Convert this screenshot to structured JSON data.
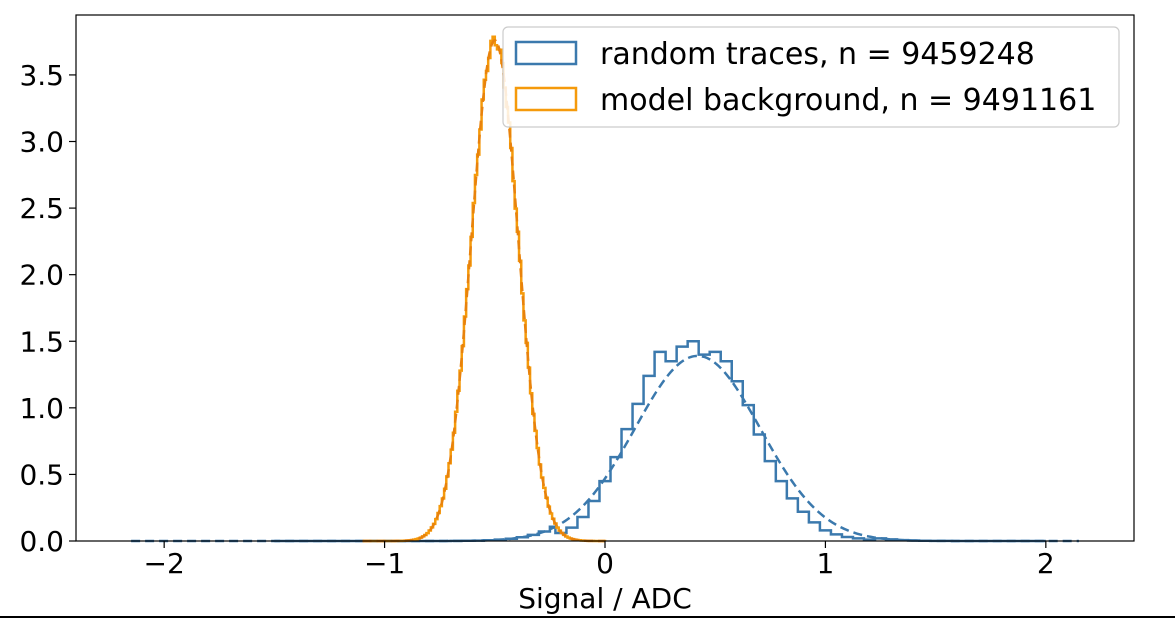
{
  "chart_data": {
    "type": "line",
    "title": "",
    "xlabel": "Signal / ADC",
    "ylabel": "",
    "xlim": [
      -2.4,
      2.4
    ],
    "ylim": [
      0.0,
      3.95
    ],
    "xticks": [
      -2,
      -1,
      0,
      1,
      2
    ],
    "xtick_labels": [
      "−2",
      "−1",
      "0",
      "1",
      "2"
    ],
    "yticks": [
      0.0,
      0.5,
      1.0,
      1.5,
      2.0,
      2.5,
      3.0,
      3.5
    ],
    "ytick_labels": [
      "0.0",
      "0.5",
      "1.0",
      "1.5",
      "2.0",
      "2.5",
      "3.0",
      "3.5"
    ],
    "grid": false,
    "legend_position": "top-right",
    "series": [
      {
        "name": "random traces, n = 9459248",
        "style": "step histogram with dashed fit",
        "color": "#3b79ad",
        "x": [
          -0.2,
          -0.15,
          -0.1,
          -0.05,
          0.0,
          0.05,
          0.1,
          0.15,
          0.2,
          0.25,
          0.3,
          0.35,
          0.4,
          0.45,
          0.5,
          0.55,
          0.6,
          0.65,
          0.7,
          0.75,
          0.8,
          0.85,
          0.9,
          0.95,
          1.0,
          1.05,
          1.1,
          1.15,
          1.2
        ],
        "values": [
          0.06,
          0.1,
          0.18,
          0.3,
          0.45,
          0.63,
          0.84,
          1.03,
          1.24,
          1.42,
          1.35,
          1.46,
          1.5,
          1.4,
          1.42,
          1.35,
          1.2,
          1.02,
          0.8,
          0.6,
          0.45,
          0.32,
          0.22,
          0.14,
          0.08,
          0.05,
          0.03,
          0.02,
          0.01
        ],
        "fit": {
          "type": "gaussian",
          "mean": 0.42,
          "sigma": 0.285,
          "amplitude": 1.39,
          "x_range": [
            -2.15,
            2.15
          ]
        }
      },
      {
        "name": "model background, n = 9491161",
        "style": "step histogram with dashed fit",
        "color": "#f59a0b",
        "fit": {
          "type": "gaussian",
          "mean": -0.5,
          "sigma": 0.106,
          "amplitude": 3.76,
          "x_range": [
            -1.1,
            0.0
          ]
        }
      }
    ]
  }
}
